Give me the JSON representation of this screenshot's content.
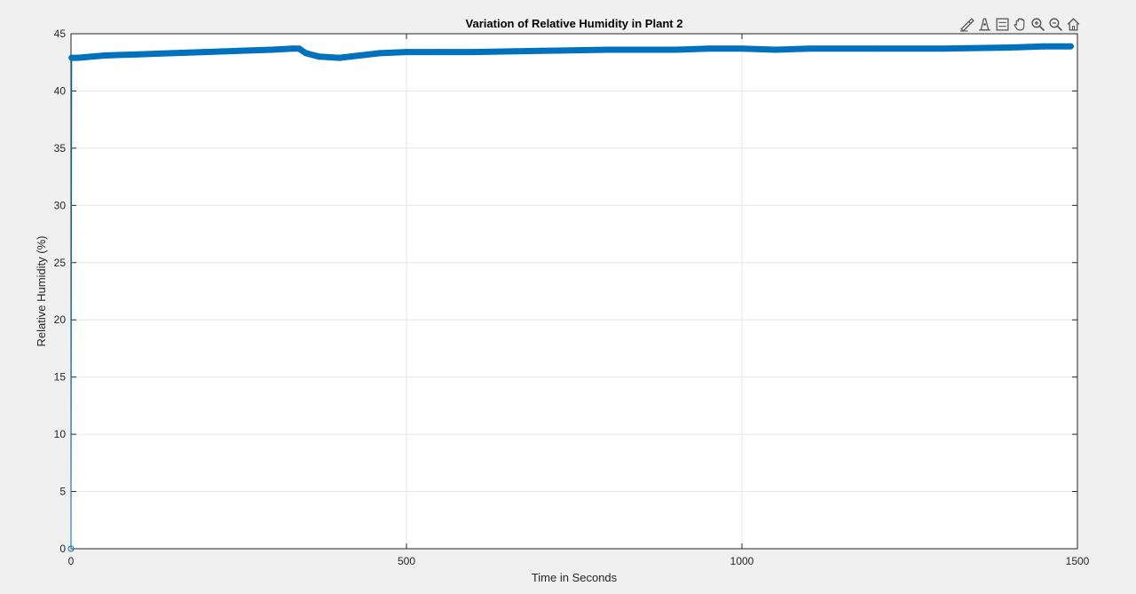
{
  "toolbar": {
    "icons": [
      "brush-icon",
      "data-tips-icon",
      "legend-icon",
      "pan-hand-icon",
      "zoom-in-icon",
      "zoom-out-icon",
      "home-icon"
    ]
  },
  "colors": {
    "series": "#0072BD",
    "background": "#f0f0f0",
    "axes_bg": "#ffffff",
    "grid": "#e6e6e6",
    "axis": "#262626"
  },
  "chart_data": {
    "type": "line",
    "title": "Variation of Relative Humidity in Plant 2",
    "xlabel": "Time in Seconds",
    "ylabel": "Relative Humidity (%)",
    "xlim": [
      0,
      1500
    ],
    "ylim": [
      0,
      45
    ],
    "xticks": [
      0,
      500,
      1000,
      1500
    ],
    "yticks": [
      0,
      5,
      10,
      15,
      20,
      25,
      30,
      35,
      40,
      45
    ],
    "grid": true,
    "markers": "circle",
    "series": [
      {
        "x": [
          0,
          1,
          10,
          50,
          100,
          150,
          200,
          250,
          300,
          330,
          340,
          350,
          370,
          400,
          430,
          460,
          500,
          550,
          600,
          700,
          800,
          900,
          950,
          1000,
          1050,
          1100,
          1200,
          1300,
          1400,
          1450,
          1490
        ],
        "y": [
          0,
          42.9,
          42.9,
          43.1,
          43.2,
          43.3,
          43.4,
          43.5,
          43.6,
          43.7,
          43.7,
          43.3,
          43.0,
          42.9,
          43.1,
          43.3,
          43.4,
          43.4,
          43.4,
          43.5,
          43.6,
          43.6,
          43.7,
          43.7,
          43.6,
          43.7,
          43.7,
          43.7,
          43.8,
          43.9,
          43.9
        ]
      }
    ]
  }
}
